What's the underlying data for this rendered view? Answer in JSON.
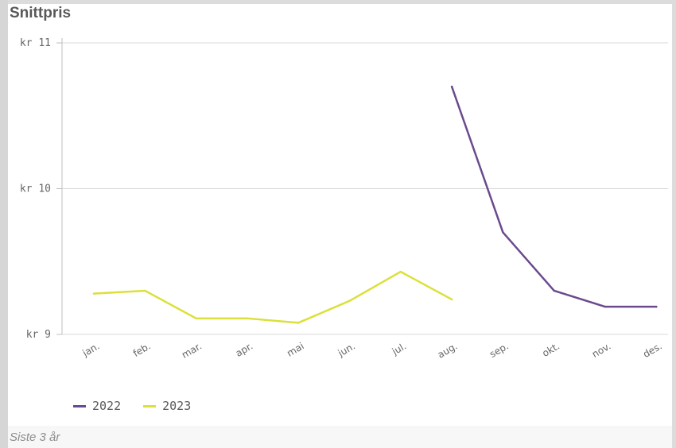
{
  "title": "Snittpris",
  "footnote": "Siste 3 år",
  "chart_data": {
    "type": "line",
    "title": "Snittpris",
    "categories": [
      "jan.",
      "feb.",
      "mar.",
      "apr.",
      "mai",
      "jun.",
      "jul.",
      "aug.",
      "sep.",
      "okt.",
      "nov.",
      "des."
    ],
    "ylim": [
      9,
      11
    ],
    "yticks": [
      9,
      10,
      11
    ],
    "ytick_labels": [
      "kr 9",
      "kr 10",
      "kr 11"
    ],
    "grid": true,
    "legend_position": "bottom-left",
    "series": [
      {
        "name": "2022",
        "color": "#6a4a8c",
        "values": [
          null,
          null,
          null,
          null,
          null,
          null,
          null,
          10.7,
          9.7,
          9.3,
          9.19,
          9.19
        ]
      },
      {
        "name": "2023",
        "color": "#dbe03a",
        "values": [
          9.28,
          9.3,
          9.11,
          9.11,
          9.08,
          9.23,
          9.43,
          9.24,
          null,
          null,
          null,
          null
        ]
      }
    ]
  }
}
